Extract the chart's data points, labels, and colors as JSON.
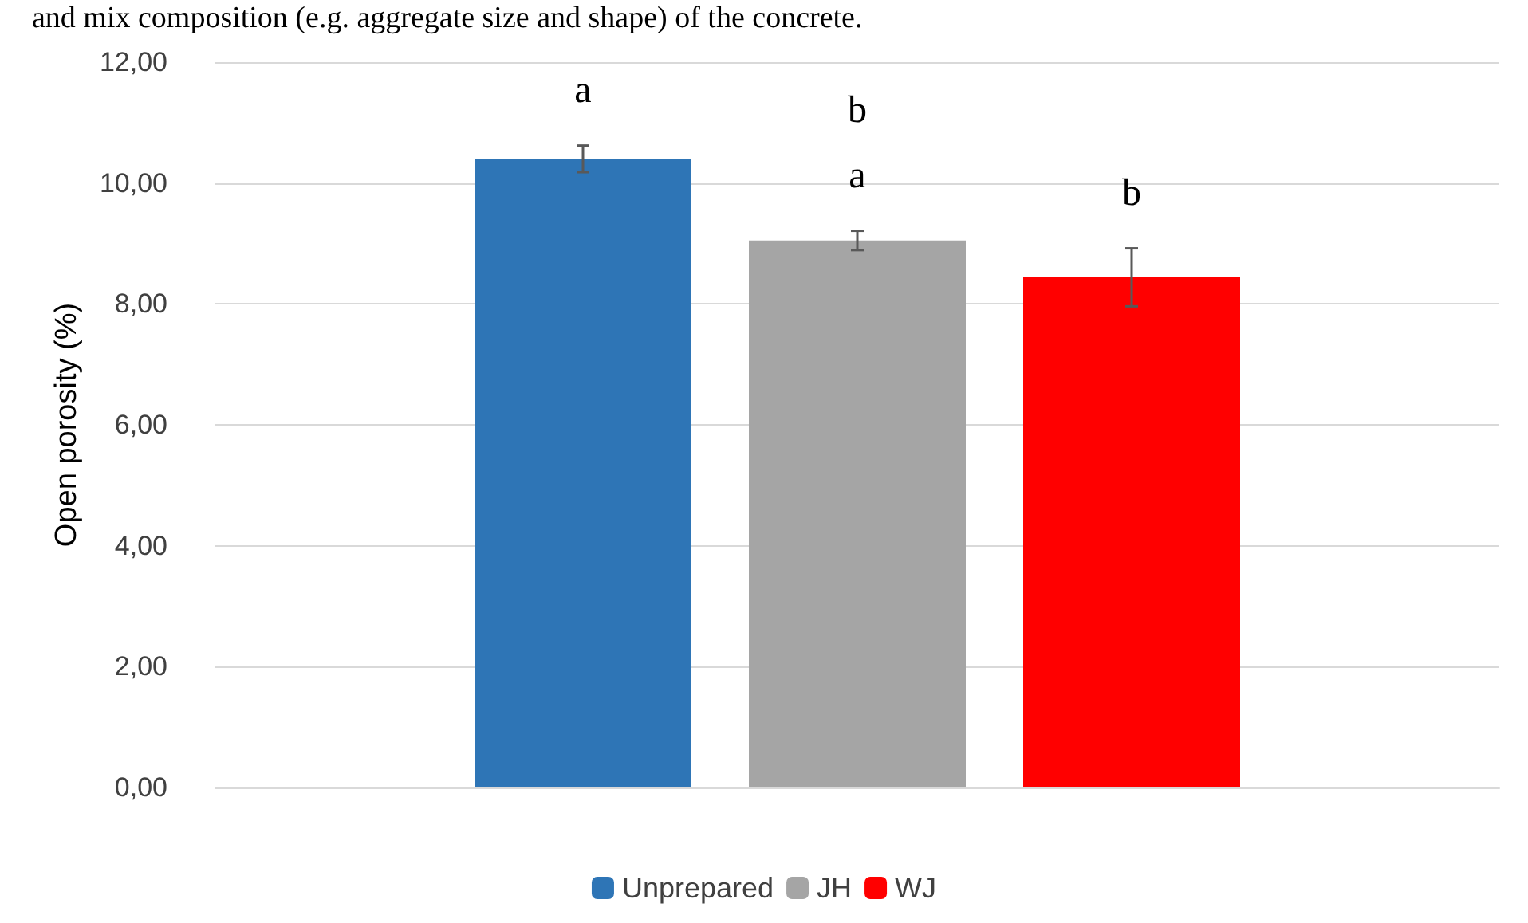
{
  "chart_data": {
    "type": "bar",
    "ylabel": "Open porosity (%)",
    "categories": [
      null
    ],
    "series": [
      {
        "name": "Unprepared",
        "color": "#2e75b6",
        "values": [
          10.4
        ],
        "errors": [
          0.22
        ],
        "value_labels": [
          "a"
        ]
      },
      {
        "name": "JH",
        "color": "#a5a5a5",
        "values": [
          9.05
        ],
        "errors": [
          0.16
        ],
        "value_labels": [
          "b\na"
        ]
      },
      {
        "name": "WJ",
        "color": "#ff0000",
        "values": [
          8.44
        ],
        "errors": [
          0.48
        ],
        "value_labels": [
          "b"
        ]
      }
    ],
    "ylim": [
      0,
      12
    ],
    "yticks": [
      {
        "value": 0,
        "label": "0,00"
      },
      {
        "value": 2,
        "label": "2,00"
      },
      {
        "value": 4,
        "label": "4,00"
      },
      {
        "value": 6,
        "label": "6,00"
      },
      {
        "value": 8,
        "label": "8,00"
      },
      {
        "value": 10,
        "label": "10,00"
      },
      {
        "value": 12,
        "label": "12,00"
      }
    ],
    "grid": "y",
    "legend": "bottom",
    "annotations": [
      "and mix composition (e.g. aggregate size and shape) of the concrete."
    ]
  }
}
